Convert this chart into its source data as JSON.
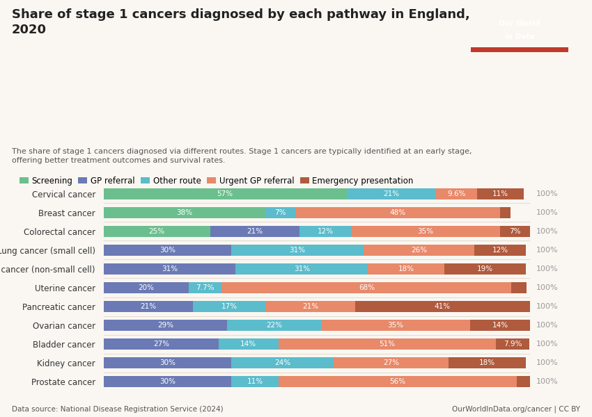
{
  "title": "Share of stage 1 cancers diagnosed by each pathway in England,\n2020",
  "subtitle": "The share of stage 1 cancers diagnosed via different routes. Stage 1 cancers are typically identified at an early stage,\noffering better treatment outcomes and survival rates.",
  "datasource": "Data source: National Disease Registration Service (2024)",
  "website": "OurWorldInData.org/cancer | CC BY",
  "categories": [
    "Cervical cancer",
    "Breast cancer",
    "Colorectal cancer",
    "Lung cancer (small cell)",
    "Lung cancer (non-small cell)",
    "Uterine cancer",
    "Pancreatic cancer",
    "Ovarian cancer",
    "Bladder cancer",
    "Kidney cancer",
    "Prostate cancer"
  ],
  "segments": [
    "Screening",
    "GP referral",
    "Other route",
    "Urgent GP referral",
    "Emergency presentation"
  ],
  "colors": [
    "#6bbf8e",
    "#6b7ab5",
    "#5bbccc",
    "#e8896a",
    "#b05a3e"
  ],
  "data": {
    "Cervical cancer": [
      57.0,
      0.0,
      21.0,
      9.6,
      11.0
    ],
    "Breast cancer": [
      38.0,
      0.0,
      7.0,
      48.0,
      2.4
    ],
    "Colorectal cancer": [
      25.0,
      21.0,
      12.0,
      35.0,
      7.0
    ],
    "Lung cancer (small cell)": [
      0.0,
      30.0,
      31.0,
      26.0,
      12.0
    ],
    "Lung cancer (non-small cell)": [
      0.0,
      31.0,
      31.0,
      18.0,
      19.0
    ],
    "Uterine cancer": [
      0.0,
      20.0,
      7.7,
      68.0,
      3.6
    ],
    "Pancreatic cancer": [
      0.0,
      21.0,
      17.0,
      21.0,
      41.0
    ],
    "Ovarian cancer": [
      0.0,
      29.0,
      22.0,
      35.0,
      14.0
    ],
    "Bladder cancer": [
      0.0,
      27.0,
      14.0,
      51.0,
      7.9
    ],
    "Kidney cancer": [
      0.0,
      30.0,
      24.0,
      27.0,
      18.0
    ],
    "Prostate cancer": [
      0.0,
      30.0,
      11.0,
      56.0,
      3.0
    ]
  },
  "labels": {
    "Cervical cancer": [
      "57%",
      "",
      "21%",
      "9.6%",
      "11%"
    ],
    "Breast cancer": [
      "38%",
      "",
      "7%",
      "48%",
      ""
    ],
    "Colorectal cancer": [
      "25%",
      "21%",
      "12%",
      "35%",
      "7%"
    ],
    "Lung cancer (small cell)": [
      "",
      "30%",
      "31%",
      "26%",
      "12%"
    ],
    "Lung cancer (non-small cell)": [
      "",
      "31%",
      "31%",
      "18%",
      "19%"
    ],
    "Uterine cancer": [
      "",
      "20%",
      "7.7%",
      "68%",
      ""
    ],
    "Pancreatic cancer": [
      "",
      "21%",
      "17%",
      "21%",
      "41%"
    ],
    "Ovarian cancer": [
      "",
      "29%",
      "22%",
      "35%",
      "14%"
    ],
    "Bladder cancer": [
      "",
      "27%",
      "14%",
      "51%",
      "7.9%"
    ],
    "Kidney cancer": [
      "",
      "30%",
      "24%",
      "27%",
      "18%"
    ],
    "Prostate cancer": [
      "",
      "30%",
      "11%",
      "56%",
      ""
    ]
  },
  "background_color": "#faf7f2",
  "bar_height": 0.6,
  "logo_bg": "#1d3557",
  "logo_red": "#c0392b"
}
